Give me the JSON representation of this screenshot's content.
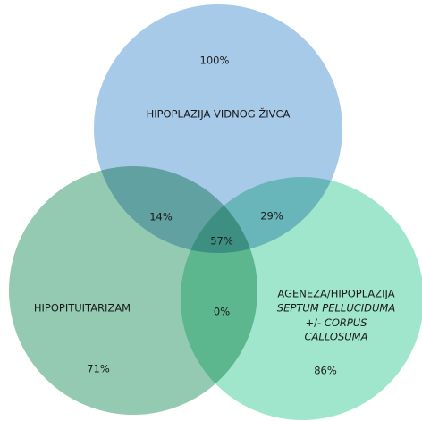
{
  "sets": [
    {
      "label": "HIPOPLAZIJA VIDNOG ŽIVCA",
      "value": "100%"
    },
    {
      "label": "HIPOPITUITARIZAM",
      "value": "71%"
    },
    {
      "label_lines": [
        "AGENEZA/HIPOPLAZIJA",
        "SEPTUM PELLUCIDUMA",
        "+/-",
        "CORPUS",
        "CALLOSUMA"
      ],
      "value": "86%"
    }
  ],
  "intersections": {
    "top_left": "14%",
    "top_right": "29%",
    "left_right": "0%",
    "all": "57%"
  }
}
